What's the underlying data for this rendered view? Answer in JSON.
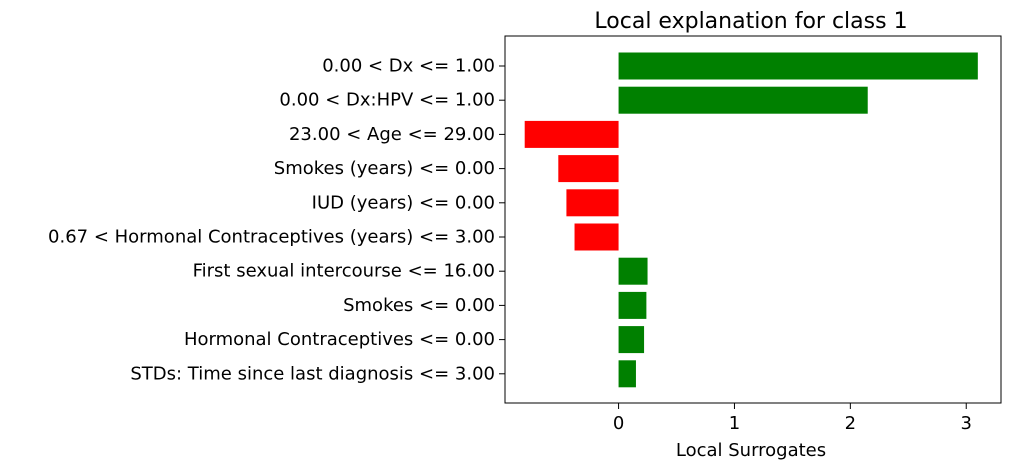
{
  "chart_data": {
    "type": "bar",
    "orientation": "horizontal",
    "title": "Local explanation for class 1",
    "xlabel": "Local Surrogates",
    "ylabel": "",
    "xlim": [
      -0.98,
      3.3
    ],
    "xticks": [
      0,
      1,
      2,
      3
    ],
    "grid": false,
    "positive_color": "#008000",
    "negative_color": "#ff0000",
    "categories": [
      "0.00 < Dx <= 1.00",
      "0.00 < Dx:HPV <= 1.00",
      "23.00 < Age <= 29.00",
      "Smokes (years) <= 0.00",
      "IUD (years) <= 0.00",
      "0.67 < Hormonal Contraceptives (years) <= 3.00",
      "First sexual intercourse <= 16.00",
      "Smokes <= 0.00",
      "Hormonal Contraceptives <= 0.00",
      "STDs: Time since last diagnosis <= 3.00"
    ],
    "values": [
      3.1,
      2.15,
      -0.81,
      -0.52,
      -0.45,
      -0.38,
      0.25,
      0.24,
      0.22,
      0.15
    ]
  }
}
